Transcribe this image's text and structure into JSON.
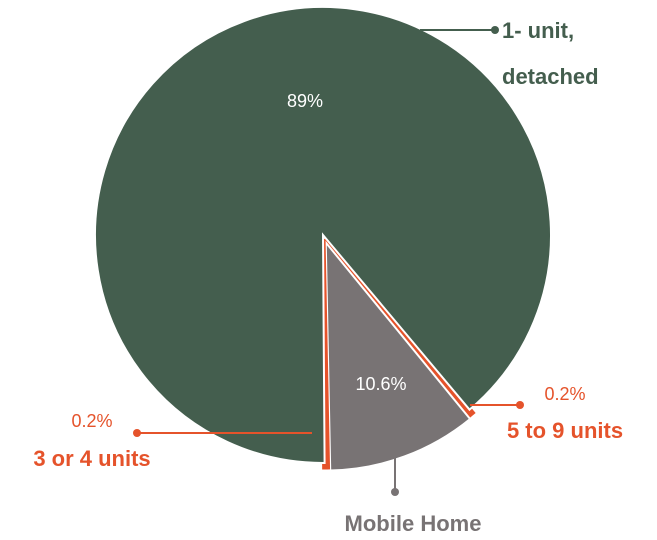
{
  "chart_data": {
    "type": "pie",
    "categories": [
      "5 to 9 units",
      "Mobile Home",
      "3 or 4 units",
      "1- unit, detached"
    ],
    "values": [
      0.2,
      10.6,
      0.2,
      89
    ],
    "value_labels": [
      "0.2%",
      "10.6%",
      "0.2%",
      "89%"
    ],
    "colors": [
      "#e5532b",
      "#787374",
      "#e5532b",
      "#445e4e"
    ]
  }
}
